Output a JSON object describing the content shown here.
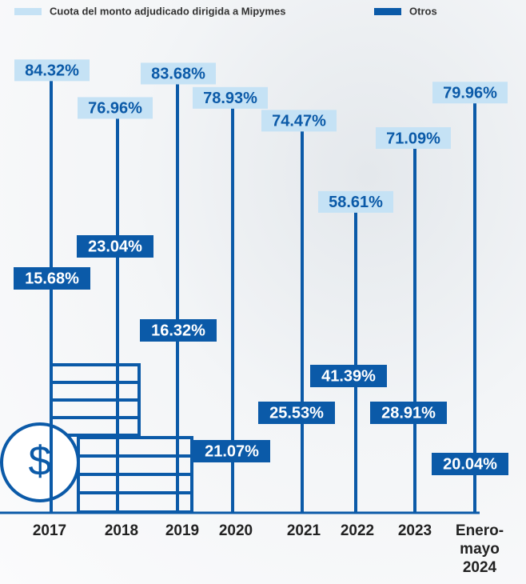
{
  "chart_data": {
    "type": "bar",
    "categories": [
      "2017",
      "2018",
      "2019",
      "2020",
      "2021",
      "2022",
      "2023",
      "Enero-mayo 2024"
    ],
    "series": [
      {
        "name": "Cuota del monto adjudicado dirigida a Mipymes",
        "color": "#c5e2f5",
        "values": [
          84.32,
          76.96,
          83.68,
          78.93,
          74.47,
          58.61,
          71.09,
          79.96
        ],
        "value_labels": [
          "84.32%",
          "76.96%",
          "83.68%",
          "78.93%",
          "74.47%",
          "58.61%",
          "71.09%",
          "79.96%"
        ]
      },
      {
        "name": "Otros",
        "color": "#0b5aa8",
        "values": [
          15.68,
          23.04,
          16.32,
          21.07,
          25.53,
          41.39,
          28.91,
          20.04
        ],
        "value_labels": [
          "15.68%",
          "23.04%",
          "16.32%",
          "21.07%",
          "25.53%",
          "41.39%",
          "28.91%",
          "20.04%"
        ]
      }
    ]
  }
}
